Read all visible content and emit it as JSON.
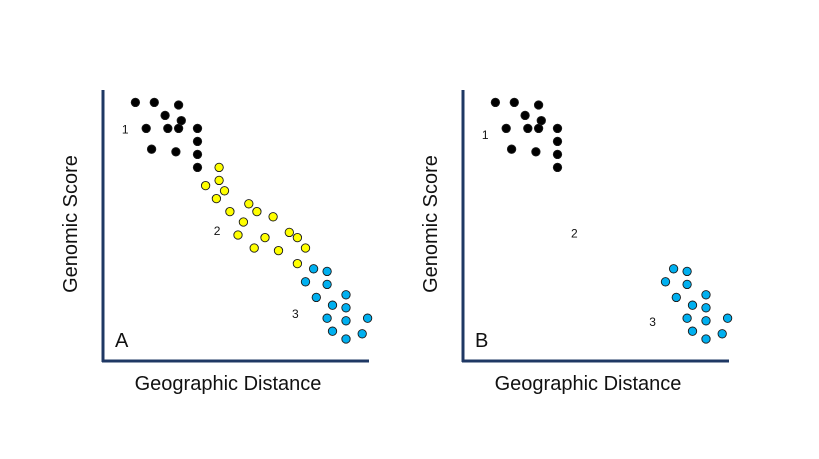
{
  "figure": {
    "colors": {
      "axis": "#1f3864",
      "dot_outline": "#1a1a1a",
      "cluster_1": "#000000",
      "cluster_2": "#ffff00",
      "cluster_3": "#00b0f0"
    }
  },
  "chart_data": [
    {
      "type": "scatter",
      "panel": "A",
      "xlabel": "Geographic Distance",
      "ylabel": "Genomic Score",
      "xlim": [
        0,
        100
      ],
      "ylim": [
        0,
        100
      ],
      "grid": false,
      "ticks": false,
      "annotations": [
        {
          "text": "1",
          "x": 7,
          "y": 84
        },
        {
          "text": "2",
          "x": 41,
          "y": 45
        },
        {
          "text": "3",
          "x": 70,
          "y": 13
        }
      ],
      "series": [
        {
          "cluster": "1",
          "color": "#000000",
          "points": [
            {
              "x": 12,
              "y": 96
            },
            {
              "x": 19,
              "y": 96
            },
            {
              "x": 28,
              "y": 95
            },
            {
              "x": 23,
              "y": 91
            },
            {
              "x": 29,
              "y": 89
            },
            {
              "x": 16,
              "y": 86
            },
            {
              "x": 24,
              "y": 86
            },
            {
              "x": 28,
              "y": 86
            },
            {
              "x": 35,
              "y": 86
            },
            {
              "x": 35,
              "y": 81
            },
            {
              "x": 18,
              "y": 78
            },
            {
              "x": 27,
              "y": 77
            },
            {
              "x": 35,
              "y": 76
            },
            {
              "x": 35,
              "y": 71
            }
          ]
        },
        {
          "cluster": "2",
          "color": "#ffff00",
          "points": [
            {
              "x": 43,
              "y": 71
            },
            {
              "x": 43,
              "y": 66
            },
            {
              "x": 38,
              "y": 64
            },
            {
              "x": 45,
              "y": 62
            },
            {
              "x": 42,
              "y": 59
            },
            {
              "x": 54,
              "y": 57
            },
            {
              "x": 47,
              "y": 54
            },
            {
              "x": 57,
              "y": 54
            },
            {
              "x": 63,
              "y": 52
            },
            {
              "x": 52,
              "y": 50
            },
            {
              "x": 69,
              "y": 46
            },
            {
              "x": 50,
              "y": 45
            },
            {
              "x": 60,
              "y": 44
            },
            {
              "x": 72,
              "y": 44
            },
            {
              "x": 56,
              "y": 40
            },
            {
              "x": 75,
              "y": 40
            },
            {
              "x": 65,
              "y": 39
            },
            {
              "x": 72,
              "y": 34
            }
          ]
        },
        {
          "cluster": "3",
          "color": "#00b0f0",
          "points": [
            {
              "x": 78,
              "y": 32
            },
            {
              "x": 83,
              "y": 31
            },
            {
              "x": 75,
              "y": 27
            },
            {
              "x": 83,
              "y": 26
            },
            {
              "x": 79,
              "y": 21
            },
            {
              "x": 90,
              "y": 22
            },
            {
              "x": 85,
              "y": 18
            },
            {
              "x": 90,
              "y": 17
            },
            {
              "x": 83,
              "y": 13
            },
            {
              "x": 90,
              "y": 12
            },
            {
              "x": 98,
              "y": 13
            },
            {
              "x": 85,
              "y": 8
            },
            {
              "x": 96,
              "y": 7
            },
            {
              "x": 90,
              "y": 5
            }
          ]
        }
      ]
    },
    {
      "type": "scatter",
      "panel": "B",
      "xlabel": "Geographic Distance",
      "ylabel": "Genomic Score",
      "xlim": [
        0,
        100
      ],
      "ylim": [
        0,
        100
      ],
      "grid": false,
      "ticks": false,
      "annotations": [
        {
          "text": "1",
          "x": 7,
          "y": 82
        },
        {
          "text": "2",
          "x": 40,
          "y": 44
        },
        {
          "text": "3",
          "x": 69,
          "y": 10
        }
      ],
      "series": [
        {
          "cluster": "1",
          "color": "#000000",
          "points": [
            {
              "x": 12,
              "y": 96
            },
            {
              "x": 19,
              "y": 96
            },
            {
              "x": 28,
              "y": 95
            },
            {
              "x": 23,
              "y": 91
            },
            {
              "x": 29,
              "y": 89
            },
            {
              "x": 16,
              "y": 86
            },
            {
              "x": 24,
              "y": 86
            },
            {
              "x": 28,
              "y": 86
            },
            {
              "x": 35,
              "y": 86
            },
            {
              "x": 35,
              "y": 81
            },
            {
              "x": 18,
              "y": 78
            },
            {
              "x": 27,
              "y": 77
            },
            {
              "x": 35,
              "y": 76
            },
            {
              "x": 35,
              "y": 71
            }
          ]
        },
        {
          "cluster": "3",
          "color": "#00b0f0",
          "points": [
            {
              "x": 78,
              "y": 32
            },
            {
              "x": 83,
              "y": 31
            },
            {
              "x": 75,
              "y": 27
            },
            {
              "x": 83,
              "y": 26
            },
            {
              "x": 79,
              "y": 21
            },
            {
              "x": 90,
              "y": 22
            },
            {
              "x": 85,
              "y": 18
            },
            {
              "x": 90,
              "y": 17
            },
            {
              "x": 83,
              "y": 13
            },
            {
              "x": 90,
              "y": 12
            },
            {
              "x": 98,
              "y": 13
            },
            {
              "x": 85,
              "y": 8
            },
            {
              "x": 96,
              "y": 7
            },
            {
              "x": 90,
              "y": 5
            }
          ]
        }
      ]
    }
  ]
}
